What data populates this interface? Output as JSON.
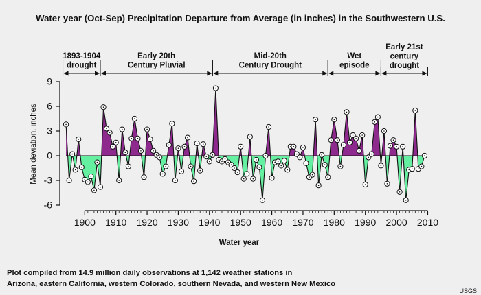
{
  "chart_data": {
    "type": "area",
    "title": "Water year (Oct-Sep) Precipitation Departure from Average (in inches) in the Southwestern U.S.",
    "xlabel": "Water year",
    "ylabel": "Mean deviation, inches",
    "xlim": [
      1892,
      2011
    ],
    "ylim": [
      -6,
      9
    ],
    "xticks": [
      "1900",
      "1910",
      "1920",
      "1930",
      "1940",
      "1950",
      "1960",
      "1970",
      "1980",
      "1990",
      "2000",
      "2010"
    ],
    "yticks": [
      "-6",
      "-3",
      "0",
      "3",
      "6",
      "9"
    ],
    "grid": false,
    "positive_color": "#8e2a8e",
    "negative_color": "#64f0a0",
    "years": [
      1894,
      1895,
      1896,
      1897,
      1898,
      1899,
      1900,
      1901,
      1902,
      1903,
      1904,
      1905,
      1906,
      1907,
      1908,
      1909,
      1910,
      1911,
      1912,
      1913,
      1914,
      1915,
      1916,
      1917,
      1918,
      1919,
      1920,
      1921,
      1922,
      1923,
      1924,
      1925,
      1926,
      1927,
      1928,
      1929,
      1930,
      1931,
      1932,
      1933,
      1934,
      1935,
      1936,
      1937,
      1938,
      1939,
      1940,
      1941,
      1942,
      1943,
      1944,
      1945,
      1946,
      1947,
      1948,
      1949,
      1950,
      1951,
      1952,
      1953,
      1954,
      1955,
      1956,
      1957,
      1958,
      1959,
      1960,
      1961,
      1962,
      1963,
      1964,
      1965,
      1966,
      1967,
      1968,
      1969,
      1970,
      1971,
      1972,
      1973,
      1974,
      1975,
      1976,
      1977,
      1978,
      1979,
      1980,
      1981,
      1982,
      1983,
      1984,
      1985,
      1986,
      1987,
      1988,
      1989,
      1990,
      1991,
      1992,
      1993,
      1994,
      1995,
      1996,
      1997,
      1998,
      1999,
      2000,
      2001,
      2002,
      2003,
      2004,
      2005,
      2006,
      2007,
      2008,
      2009
    ],
    "values": [
      3.8,
      -3.0,
      0.2,
      -1.7,
      2.0,
      -1.4,
      -2.9,
      -3.2,
      -2.5,
      -4.2,
      -0.8,
      -3.8,
      5.9,
      3.3,
      2.8,
      1.1,
      1.6,
      -3.0,
      3.2,
      0.4,
      -1.3,
      2.1,
      4.5,
      2.1,
      0.6,
      -2.6,
      3.2,
      2.0,
      0.6,
      0.1,
      -0.2,
      -2.2,
      -1.3,
      1.3,
      3.9,
      -3.0,
      0.9,
      -1.9,
      1.1,
      2.2,
      -1.3,
      -3.1,
      1.5,
      -1.8,
      1.4,
      -0.1,
      -0.7,
      0.1,
      8.2,
      -0.5,
      -0.7,
      -0.4,
      -0.8,
      -1.1,
      -1.5,
      -2.0,
      1.1,
      -2.8,
      -2.2,
      2.3,
      -2.8,
      -0.5,
      -1.4,
      -5.4,
      0.0,
      3.5,
      -2.7,
      -0.8,
      -0.7,
      -1.2,
      -0.6,
      -1.7,
      1.1,
      1.1,
      0.2,
      -0.2,
      1.0,
      -0.9,
      -2.6,
      -2.3,
      4.4,
      -3.6,
      0.1,
      -1.1,
      -2.6,
      1.9,
      4.4,
      1.9,
      -1.3,
      1.3,
      5.3,
      1.6,
      2.5,
      2.1,
      0.6,
      2.5,
      -3.5,
      -0.2,
      0.2,
      4.1,
      4.7,
      -1.2,
      3.0,
      -3.4,
      1.2,
      1.9,
      1.1,
      -4.4,
      1.1,
      -5.4,
      -1.7,
      -1.6,
      5.5,
      -1.6,
      -1.3,
      0.0
    ],
    "periods": [
      {
        "label": "1893-1904 drought",
        "from": 1893,
        "to": 1905
      },
      {
        "label": "Early 20th Century Pluvial",
        "from": 1905,
        "to": 1941
      },
      {
        "label": "Mid-20th Century Drought",
        "from": 1941,
        "to": 1978
      },
      {
        "label": "Wet episode",
        "from": 1978,
        "to": 1995
      },
      {
        "label": "Early 21st century drought",
        "from": 1995,
        "to": 2010
      }
    ]
  },
  "period_label_lines": [
    [
      "1893-1904",
      "drought"
    ],
    [
      "Early 20th",
      "Century Pluvial"
    ],
    [
      "Mid-20th",
      "Century Drought"
    ],
    [
      "Wet",
      "episode"
    ],
    [
      "Early 21st",
      "century",
      "drought"
    ]
  ],
  "footnote": {
    "line1": "Plot compiled from 14.9 million daily observations at 1,142 weather stations in",
    "line2": "Arizona, eastern California, western Colorado, southern Nevada, and western New Mexico"
  },
  "credit": "USGS"
}
